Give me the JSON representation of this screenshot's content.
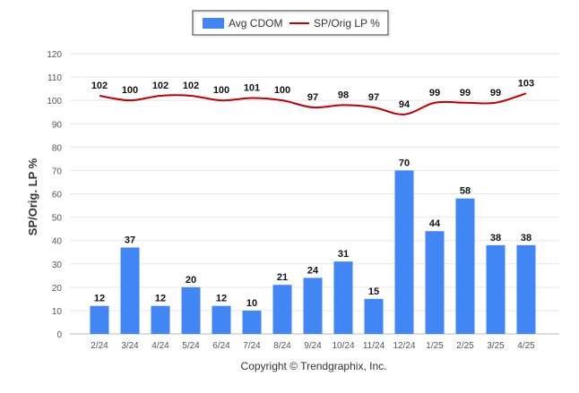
{
  "chart_data": {
    "type": "bar",
    "categories": [
      "2/24",
      "3/24",
      "4/24",
      "5/24",
      "6/24",
      "7/24",
      "8/24",
      "9/24",
      "10/24",
      "11/24",
      "12/24",
      "1/25",
      "2/25",
      "3/25",
      "4/25"
    ],
    "series": [
      {
        "name": "Avg CDOM",
        "type": "bar",
        "color": "#4285f4",
        "values": [
          12,
          37,
          12,
          20,
          12,
          10,
          21,
          24,
          31,
          15,
          70,
          44,
          58,
          38,
          38
        ]
      },
      {
        "name": "SP/Orig LP %",
        "type": "line",
        "color": "#c00000",
        "values": [
          102,
          100,
          102,
          102,
          100,
          101,
          100,
          97,
          98,
          97,
          94,
          99,
          99,
          99,
          103
        ]
      }
    ],
    "ylabel": "SP/Orig. LP %",
    "ylim": [
      0,
      120
    ],
    "yticks": [
      0,
      10,
      20,
      30,
      40,
      50,
      60,
      70,
      80,
      90,
      100,
      110,
      120
    ],
    "grid": true,
    "legend_position": "top-center",
    "copyright": "Copyright © Trendgraphix, Inc."
  }
}
